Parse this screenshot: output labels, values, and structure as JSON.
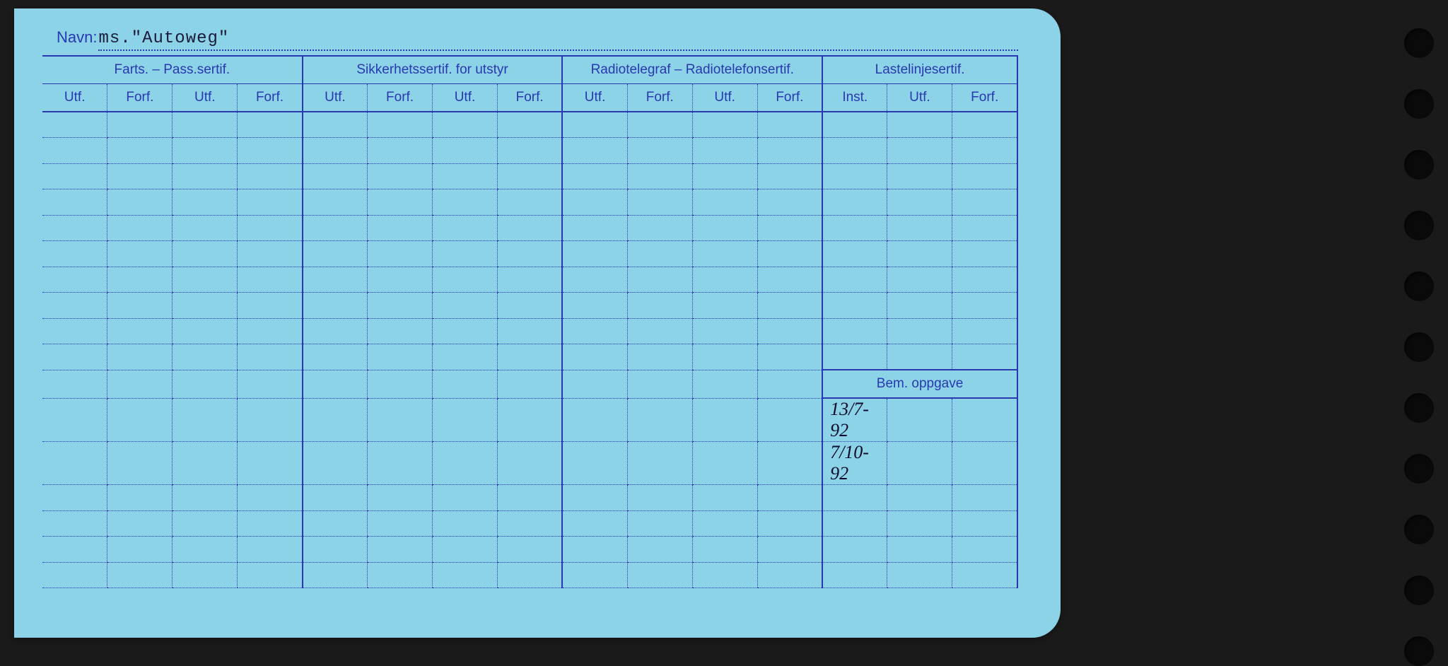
{
  "card": {
    "navn_label": "Navn:",
    "navn_value": "ms.\"Autoweg\"",
    "background_color": "#8dd3e8",
    "line_color": "#2838b0",
    "text_color": "#2838b0"
  },
  "groups": [
    {
      "label": "Farts. – Pass.sertif.",
      "cols": [
        "Utf.",
        "Forf.",
        "Utf.",
        "Forf."
      ]
    },
    {
      "label": "Sikkerhetssertif. for utstyr",
      "cols": [
        "Utf.",
        "Forf.",
        "Utf.",
        "Forf."
      ]
    },
    {
      "label": "Radiotelegraf – Radiotelefonsertif.",
      "cols": [
        "Utf.",
        "Forf.",
        "Utf.",
        "Forf."
      ]
    },
    {
      "label": "Lastelinjesertif.",
      "cols": [
        "Inst.",
        "Utf.",
        "Forf."
      ]
    }
  ],
  "bem_oppgave_label": "Bem. oppgave",
  "body_rows_upper": 10,
  "body_rows_lower": 6,
  "handwritten": {
    "row1": "13/7-92",
    "row2": "7/10-92"
  },
  "holes_count": 11
}
